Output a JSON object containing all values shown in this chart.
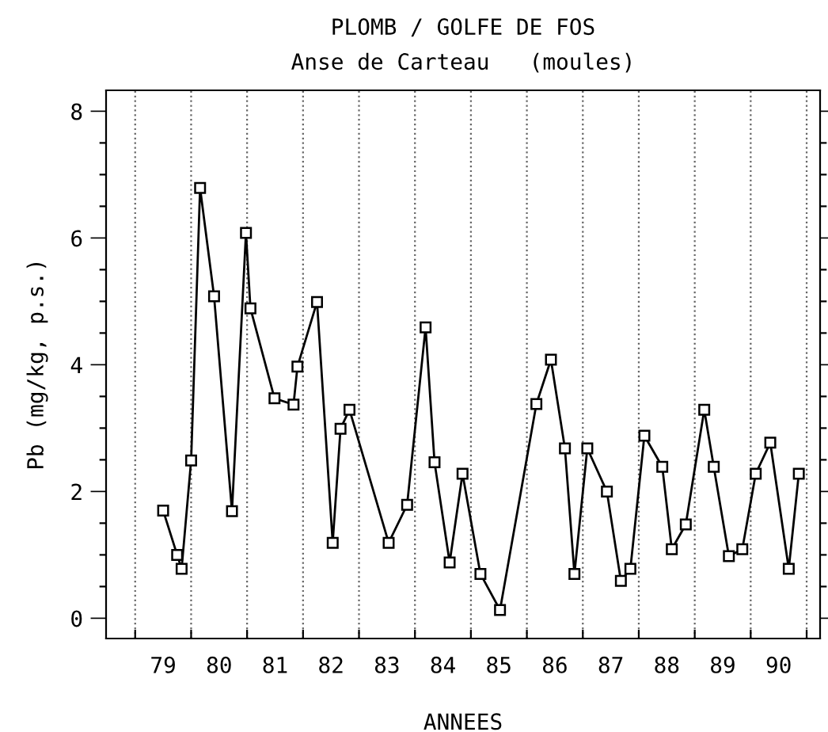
{
  "chart_data": {
    "type": "line",
    "title": "PLOMB / GOLFE DE FOS",
    "subtitle": "Anse de Carteau   (moules)",
    "xlabel": "ANNEES",
    "ylabel": "Pb (mg/kg, p.s.)",
    "x": [
      79.0,
      79.25,
      79.33,
      79.5,
      79.66,
      79.91,
      80.23,
      80.48,
      80.56,
      80.99,
      81.33,
      81.4,
      81.75,
      82.03,
      82.17,
      82.33,
      83.03,
      83.36,
      83.69,
      83.85,
      84.12,
      84.35,
      84.67,
      85.02,
      85.67,
      85.93,
      86.18,
      86.35,
      86.58,
      86.93,
      87.18,
      87.35,
      87.6,
      87.92,
      88.09,
      88.34,
      88.67,
      88.84,
      89.11,
      89.35,
      89.59,
      89.85,
      90.18,
      90.36
    ],
    "series": [
      {
        "color": "#000000",
        "values": [
          1.7,
          1.0,
          0.78,
          2.49,
          6.79,
          5.08,
          1.69,
          6.08,
          4.89,
          3.47,
          3.37,
          3.97,
          4.99,
          1.19,
          2.99,
          3.29,
          1.19,
          1.79,
          4.59,
          2.46,
          0.88,
          2.28,
          0.7,
          0.13,
          3.38,
          4.08,
          2.68,
          0.7,
          2.68,
          2.0,
          0.59,
          0.78,
          2.88,
          2.39,
          1.09,
          1.48,
          3.29,
          2.39,
          0.98,
          1.09,
          2.28,
          2.77,
          0.78,
          2.28
        ]
      }
    ],
    "xlim": [
      77.98,
      90.74
    ],
    "ylim": [
      -0.32,
      8.33
    ],
    "xticks": [
      {
        "value": 78.5,
        "label": null
      },
      {
        "value": 79.5,
        "label": null
      },
      {
        "value": 80.5,
        "label": null
      },
      {
        "value": 81.5,
        "label": null
      },
      {
        "value": 82.5,
        "label": null
      },
      {
        "value": 83.5,
        "label": null
      },
      {
        "value": 84.5,
        "label": null
      },
      {
        "value": 85.5,
        "label": null
      },
      {
        "value": 86.5,
        "label": null
      },
      {
        "value": 87.5,
        "label": null
      },
      {
        "value": 88.5,
        "label": null
      },
      {
        "value": 89.5,
        "label": null
      },
      {
        "value": 90.5,
        "label": null
      },
      79,
      80,
      81,
      82,
      83,
      84,
      85,
      86,
      87,
      88,
      89,
      90
    ],
    "yticks": [
      0,
      {
        "value": 0.5,
        "label": null
      },
      2,
      {
        "value": 1,
        "label": null
      },
      {
        "value": 1.5,
        "label": null
      },
      {
        "value": 2.5,
        "label": null
      },
      {
        "value": 3,
        "label": null
      },
      {
        "value": 3.5,
        "label": null
      },
      4,
      {
        "value": 4.5,
        "label": null
      },
      {
        "value": 5,
        "label": null
      },
      {
        "value": 5.5,
        "label": null
      },
      6,
      {
        "value": 6.5,
        "label": null
      },
      {
        "value": 7,
        "label": null
      },
      {
        "value": 7.5,
        "label": null
      },
      8
    ],
    "grid": "x",
    "marker": "square",
    "line_style": "solid",
    "legend": false
  }
}
